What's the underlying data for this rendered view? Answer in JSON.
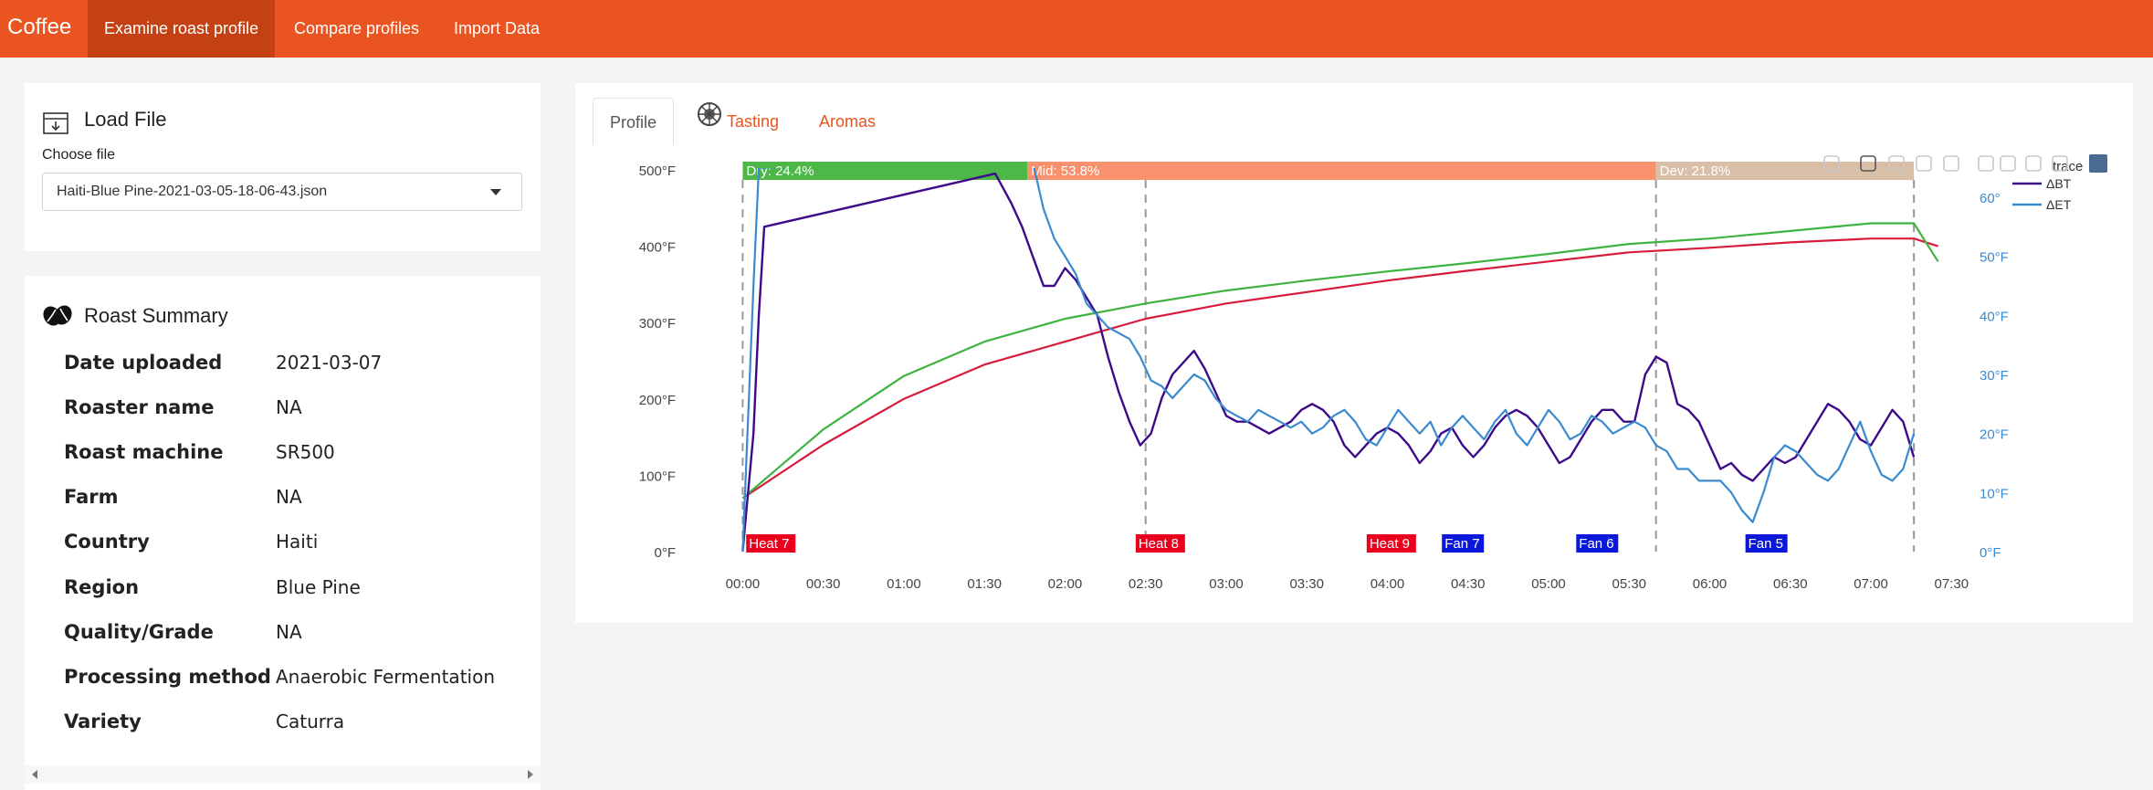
{
  "nav": {
    "brand": "Coffee",
    "items": [
      "Examine roast profile",
      "Compare profiles",
      "Import Data"
    ]
  },
  "load_file": {
    "title": "Load File",
    "choose_label": "Choose file",
    "selected_file": "Haiti-Blue Pine-2021-03-05-18-06-43.json"
  },
  "summary": {
    "title": "Roast Summary",
    "rows": [
      {
        "key": "Date uploaded",
        "value": "2021-03-07"
      },
      {
        "key": "Roaster name",
        "value": "NA"
      },
      {
        "key": "Roast machine",
        "value": "SR500"
      },
      {
        "key": "Farm",
        "value": "NA"
      },
      {
        "key": "Country",
        "value": "Haiti"
      },
      {
        "key": "Region",
        "value": "Blue Pine"
      },
      {
        "key": "Quality/Grade",
        "value": "NA"
      },
      {
        "key": "Processing method",
        "value": "Anaerobic Fermentation"
      },
      {
        "key": "Variety",
        "value": "Caturra"
      }
    ]
  },
  "tabs": [
    "Profile",
    "Tasting",
    "Aromas"
  ],
  "colors": {
    "accent": "#e95420",
    "bt": "#d81b3c",
    "et": "#3fb33f",
    "dbt": "#3d0b8a",
    "det": "#3a8ad0",
    "dry": "#4cb848",
    "mid": "#f7916e",
    "dev": "#d9bfa7",
    "heat_label": "#e8001c",
    "fan_label": "#0b17d9"
  },
  "icons": [
    "download-file-icon",
    "coffee-bean-icon",
    "tasting-wheel-icon",
    "caret-down-icon",
    "camera-icon",
    "zoom-icon",
    "pan-icon",
    "box-select-icon",
    "lasso-icon",
    "zoom-in-icon",
    "zoom-out-icon",
    "autoscale-icon",
    "reset-axes-icon",
    "plotly-logo-icon"
  ],
  "chart_data": {
    "type": "line",
    "x_ticks": [
      "00:00",
      "00:30",
      "01:00",
      "01:30",
      "02:00",
      "02:30",
      "03:00",
      "03:30",
      "04:00",
      "04:30",
      "05:00",
      "05:30",
      "06:00",
      "06:30",
      "07:00",
      "07:30"
    ],
    "y_ticks": [
      "0°F",
      "100°F",
      "200°F",
      "300°F",
      "400°F",
      "500°F"
    ],
    "y2_ticks": [
      "0°F",
      "10°F",
      "20°F",
      "30°F",
      "40°F",
      "50°F",
      "60°"
    ],
    "ylim": [
      0,
      500
    ],
    "y2lim": [
      0,
      60
    ],
    "xlim_seconds": [
      -10,
      455
    ],
    "phases": [
      {
        "label": "Dry: 24.4%",
        "start": 0,
        "end": 106
      },
      {
        "label": "Mid: 53.8%",
        "start": 106,
        "end": 340
      },
      {
        "label": "Dev: 21.8%",
        "start": 340,
        "end": 436
      }
    ],
    "event_lines": [
      0,
      150,
      340,
      436
    ],
    "events": [
      {
        "label": "Heat 7",
        "t": 3
      },
      {
        "label": "Heat 8",
        "t": 148
      },
      {
        "label": "Heat 9",
        "t": 234
      },
      {
        "label": "Fan 7",
        "t": 262
      },
      {
        "label": "Fan 6",
        "t": 312
      },
      {
        "label": "Fan 5",
        "t": 375
      }
    ],
    "legend_title": "trace",
    "series": [
      {
        "name": "",
        "axis": "y",
        "x": [
          0,
          30,
          60,
          90,
          120,
          150,
          180,
          210,
          240,
          270,
          300,
          330,
          360,
          390,
          420,
          436,
          445
        ],
        "values": [
          70,
          140,
          200,
          245,
          275,
          305,
          325,
          340,
          355,
          368,
          380,
          392,
          398,
          405,
          410,
          410,
          400
        ]
      },
      {
        "name": "",
        "axis": "y",
        "x": [
          0,
          30,
          60,
          90,
          120,
          150,
          180,
          210,
          240,
          270,
          300,
          330,
          360,
          390,
          420,
          436,
          445
        ],
        "values": [
          70,
          160,
          230,
          275,
          305,
          325,
          342,
          355,
          367,
          378,
          390,
          403,
          410,
          420,
          430,
          430,
          380
        ]
      },
      {
        "name": "ΔBT",
        "axis": "y2",
        "x": [
          0,
          4,
          6,
          8,
          94,
          100,
          104,
          108,
          112,
          116,
          120,
          124,
          128,
          132,
          136,
          140,
          144,
          148,
          152,
          156,
          160,
          164,
          168,
          172,
          176,
          180,
          184,
          188,
          192,
          196,
          200,
          204,
          208,
          212,
          216,
          220,
          224,
          228,
          232,
          236,
          240,
          244,
          248,
          252,
          256,
          260,
          264,
          268,
          272,
          276,
          280,
          284,
          288,
          292,
          296,
          300,
          304,
          308,
          312,
          316,
          320,
          324,
          328,
          332,
          336,
          340,
          344,
          348,
          352,
          356,
          360,
          364,
          368,
          372,
          376,
          380,
          384,
          388,
          392,
          396,
          400,
          404,
          408,
          412,
          416,
          420,
          424,
          428,
          432,
          436
        ],
        "values": [
          0,
          20,
          40,
          55,
          64,
          59,
          55,
          50,
          45,
          45,
          48,
          46,
          43,
          40,
          33,
          27,
          22,
          18,
          20,
          26,
          30,
          32,
          34,
          31,
          27,
          23,
          22,
          22,
          21,
          20,
          21,
          22,
          24,
          25,
          24,
          22,
          18,
          16,
          18,
          20,
          21,
          20,
          18,
          15,
          17,
          20,
          21,
          18,
          16,
          18,
          21,
          23,
          24,
          23,
          21,
          18,
          15,
          16,
          19,
          22,
          24,
          24,
          22,
          22,
          30,
          33,
          32,
          25,
          24,
          22,
          18,
          14,
          15,
          13,
          12,
          14,
          16,
          15,
          16,
          19,
          22,
          25,
          24,
          22,
          19,
          18,
          21,
          24,
          22,
          16
        ]
      },
      {
        "name": "ΔET",
        "axis": "y2",
        "x": [
          0,
          4,
          6,
          108,
          112,
          116,
          120,
          124,
          128,
          132,
          136,
          140,
          144,
          148,
          152,
          156,
          160,
          164,
          168,
          172,
          176,
          180,
          184,
          188,
          192,
          196,
          200,
          204,
          208,
          212,
          216,
          220,
          224,
          228,
          232,
          236,
          240,
          244,
          248,
          252,
          256,
          260,
          264,
          268,
          272,
          276,
          280,
          284,
          288,
          292,
          296,
          300,
          304,
          308,
          312,
          316,
          320,
          324,
          328,
          332,
          336,
          340,
          344,
          348,
          352,
          356,
          360,
          364,
          368,
          372,
          376,
          380,
          384,
          388,
          392,
          396,
          400,
          404,
          408,
          412,
          416,
          420,
          424,
          428,
          432,
          436
        ],
        "values": [
          0,
          45,
          65,
          66,
          58,
          53,
          50,
          47,
          42,
          40,
          38,
          37,
          36,
          33,
          29,
          28,
          26,
          28,
          30,
          29,
          26,
          24,
          23,
          22,
          24,
          23,
          22,
          21,
          22,
          20,
          21,
          23,
          24,
          22,
          19,
          18,
          21,
          24,
          22,
          20,
          22,
          18,
          21,
          23,
          21,
          19,
          22,
          24,
          20,
          18,
          21,
          24,
          22,
          19,
          20,
          23,
          22,
          20,
          21,
          22,
          21,
          18,
          17,
          14,
          14,
          12,
          12,
          12,
          10,
          7,
          5,
          10,
          16,
          18,
          17,
          15,
          13,
          12,
          14,
          18,
          22,
          17,
          13,
          12,
          14,
          20
        ]
      }
    ]
  }
}
